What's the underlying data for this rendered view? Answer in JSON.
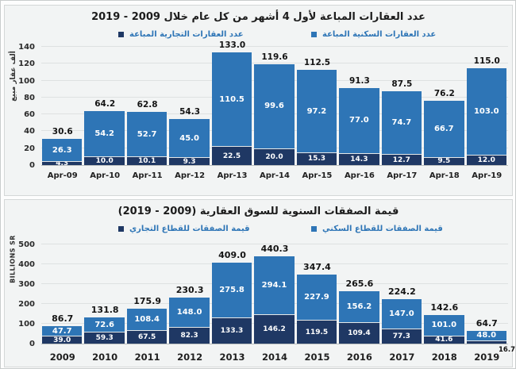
{
  "colors": {
    "residential_blue": "#2E75B6",
    "commercial_navy": "#1F3864",
    "legend_text": "#2E75B6",
    "gridline": "#DEE1E1",
    "panel_background": "#F2F4F4",
    "inside_label": "#FFFFFF",
    "total_label": "#141414"
  },
  "chart_data": [
    {
      "type": "bar",
      "stacked": true,
      "title": "عدد العقارات المباعة لأول 4 أشهر من كل عام خلال 2009 - 2019",
      "ylabel": "ألف عقار مبيع",
      "xlabel": "",
      "ylim": [
        0,
        140
      ],
      "ytick_step": 20,
      "grid": true,
      "legend_position": "top",
      "categories": [
        "Apr-09",
        "Apr-10",
        "Apr-11",
        "Apr-12",
        "Apr-13",
        "Apr-14",
        "Apr-15",
        "Apr-16",
        "Apr-17",
        "Apr-18",
        "Apr-19"
      ],
      "series": [
        {
          "name": "عدد العقارات التجارية المباعة",
          "color": "#1F3864",
          "values": [
            4.3,
            10.0,
            10.1,
            9.3,
            22.5,
            20.0,
            15.3,
            14.3,
            12.7,
            9.5,
            12.0
          ]
        },
        {
          "name": "عدد العقارات السكنية المباعة",
          "color": "#2E75B6",
          "values": [
            26.3,
            54.2,
            52.7,
            45.0,
            110.5,
            99.6,
            97.2,
            77.0,
            74.7,
            66.7,
            103.0
          ]
        }
      ],
      "totals": [
        30.6,
        64.2,
        62.8,
        54.3,
        133.0,
        119.6,
        112.5,
        91.3,
        87.5,
        76.2,
        115.0
      ]
    },
    {
      "type": "bar",
      "stacked": true,
      "title": "قيمة الصفقات السنوية للسوق العقارية (2009 - 2019)",
      "ylabel": "BILLIONS SR",
      "xlabel": "",
      "ylim": [
        0,
        500
      ],
      "ytick_step": 100,
      "grid": true,
      "legend_position": "top",
      "categories": [
        "2009",
        "2010",
        "2011",
        "2012",
        "2013",
        "2014",
        "2015",
        "2016",
        "2017",
        "2018",
        "2019"
      ],
      "series": [
        {
          "name": "قيمة الصفقات للقطاع التجاري",
          "color": "#1F3864",
          "values": [
            39.0,
            59.3,
            67.5,
            82.3,
            133.3,
            146.2,
            119.5,
            109.4,
            77.3,
            41.6,
            16.7
          ]
        },
        {
          "name": "قيمة الصفقات للقطاع السكني",
          "color": "#2E75B6",
          "values": [
            47.7,
            72.6,
            108.4,
            148.0,
            275.8,
            294.1,
            227.9,
            156.2,
            147.0,
            101.0,
            48.0
          ]
        }
      ],
      "totals": [
        86.7,
        131.8,
        175.9,
        230.3,
        409.0,
        440.3,
        347.4,
        265.6,
        224.2,
        142.6,
        64.7
      ],
      "annotation": {
        "text": "16.7"
      }
    }
  ]
}
